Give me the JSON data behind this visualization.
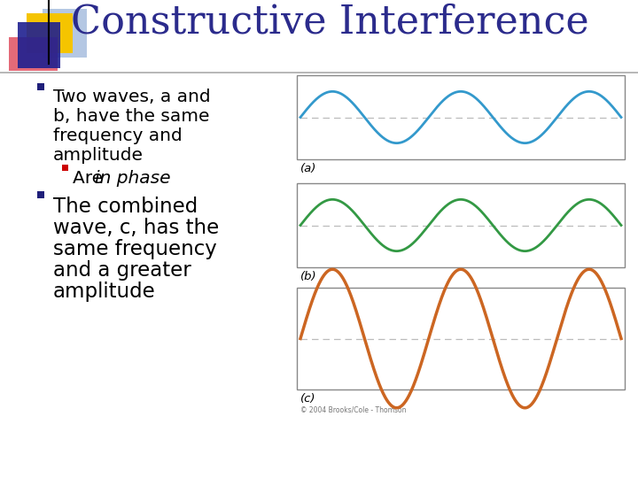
{
  "title": "Constructive Interference",
  "title_color": "#2B2B8C",
  "title_fontsize": 32,
  "bg_color": "#FFFFFF",
  "bullet_color": "#1F1F7A",
  "bullet1_lines": [
    "Two waves, a and",
    "b, have the same",
    "frequency and",
    "amplitude"
  ],
  "sub_bullet_prefix": "Are ",
  "sub_bullet_italic": "in phase",
  "bullet2_lines": [
    "The combined",
    "wave, c, has the",
    "same frequency",
    "and a greater",
    "amplitude"
  ],
  "wave_a_color": "#3399CC",
  "wave_b_color": "#339944",
  "wave_c_color": "#CC6622",
  "dashed_line_color": "#BBBBBB",
  "box_edge_color": "#888888",
  "label_a": "(a)",
  "label_b": "(b)",
  "label_c": "(c)",
  "amplitude_ab": 0.72,
  "amplitude_c": 1.55,
  "num_cycles_ab": 2.5,
  "num_cycles_c": 2.5,
  "decoration_gold": "#F5C400",
  "decoration_red": "#E05060",
  "decoration_blue_dark": "#1F2090",
  "decoration_blue_light": "#7799CC",
  "copyright": "© 2004 Brooks/Cole - Thomson",
  "sep_line_color": "#AAAAAA",
  "wave_lw_ab": 2.0,
  "wave_lw_c": 2.5
}
